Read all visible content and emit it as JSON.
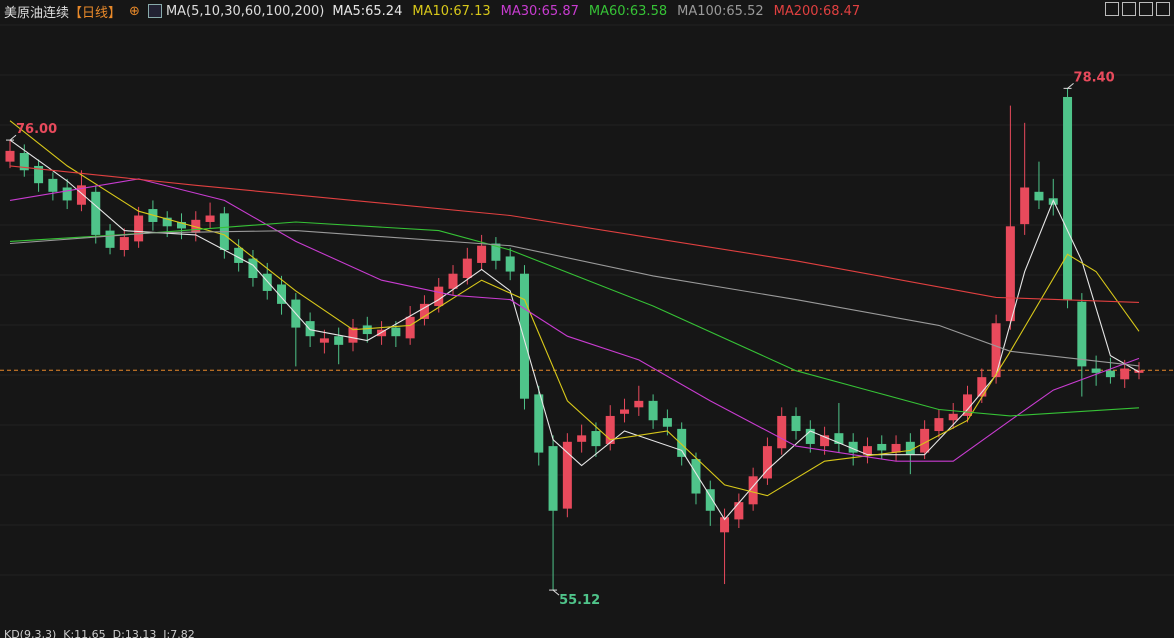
{
  "chart_data": {
    "type": "candlestick",
    "title": "美原油连续",
    "period": "【日线】",
    "indicator": "MA(5,10,30,60,100,200)",
    "ylim": [
      53.5,
      82.5
    ],
    "candles": {
      "up_color": "#e84a5c",
      "down_color": "#4fc48a",
      "open": [
        75.0,
        75.4,
        74.8,
        74.2,
        73.8,
        73.0,
        73.6,
        71.8,
        70.9,
        71.3,
        72.8,
        72.4,
        72.2,
        71.7,
        72.2,
        72.6,
        71.0,
        70.5,
        69.8,
        69.3,
        68.6,
        67.6,
        66.6,
        66.9,
        66.6,
        67.4,
        66.9,
        67.3,
        66.8,
        67.7,
        68.3,
        69.1,
        69.6,
        70.3,
        71.2,
        70.6,
        69.8,
        64.2,
        61.8,
        58.9,
        62.0,
        62.5,
        61.9,
        63.3,
        63.6,
        63.9,
        63.1,
        62.6,
        61.2,
        59.8,
        57.8,
        58.4,
        59.1,
        60.3,
        61.7,
        63.2,
        62.6,
        61.8,
        62.4,
        62.0,
        61.4,
        61.9,
        61.5,
        62.0,
        61.5,
        62.5,
        63.0,
        63.2,
        64.1,
        65.0,
        67.6,
        72.1,
        73.6,
        73.3,
        78.0,
        68.5,
        65.4,
        65.3,
        64.9,
        65.2
      ],
      "high": [
        76.0,
        75.8,
        75.1,
        74.5,
        74.2,
        74.6,
        73.9,
        72.1,
        71.9,
        72.9,
        73.2,
        72.7,
        72.6,
        72.7,
        73.1,
        72.9,
        71.4,
        70.9,
        70.3,
        69.7,
        68.9,
        68.0,
        67.2,
        67.3,
        67.7,
        67.8,
        67.6,
        67.6,
        68.3,
        68.8,
        69.6,
        70.2,
        71.0,
        71.6,
        71.5,
        71.0,
        70.2,
        64.6,
        62.3,
        62.4,
        62.8,
        62.9,
        63.7,
        64.0,
        64.6,
        64.2,
        63.5,
        62.9,
        61.5,
        60.2,
        58.9,
        59.6,
        60.8,
        62.2,
        63.6,
        63.6,
        63.0,
        62.7,
        63.8,
        62.4,
        62.2,
        62.3,
        62.3,
        62.4,
        63.0,
        63.5,
        63.8,
        64.6,
        65.4,
        67.9,
        77.6,
        76.8,
        75.0,
        74.2,
        78.4,
        68.9,
        66.0,
        65.9,
        65.8,
        65.7
      ],
      "low": [
        74.7,
        74.3,
        73.6,
        73.2,
        72.8,
        72.7,
        71.2,
        70.7,
        70.6,
        71.0,
        71.8,
        71.5,
        71.4,
        71.3,
        71.9,
        70.5,
        69.9,
        69.2,
        68.6,
        67.9,
        65.5,
        66.4,
        66.1,
        65.6,
        66.2,
        66.6,
        66.5,
        66.4,
        66.5,
        67.4,
        68.0,
        68.8,
        69.3,
        70.0,
        70.0,
        69.5,
        63.5,
        60.9,
        55.12,
        58.5,
        61.5,
        61.3,
        61.6,
        62.9,
        63.2,
        62.6,
        62.3,
        60.9,
        59.1,
        58.1,
        55.4,
        58.0,
        58.8,
        60.0,
        61.4,
        62.1,
        61.5,
        61.4,
        61.5,
        60.9,
        61.0,
        61.2,
        61.1,
        60.5,
        61.2,
        62.2,
        62.6,
        62.9,
        63.8,
        64.7,
        67.2,
        71.6,
        72.8,
        72.5,
        68.2,
        64.1,
        64.6,
        64.7,
        64.5,
        64.9
      ],
      "close": [
        75.5,
        74.6,
        74.0,
        73.6,
        73.2,
        73.9,
        71.6,
        71.0,
        71.5,
        72.5,
        72.2,
        72.0,
        71.9,
        72.3,
        72.5,
        70.9,
        70.3,
        69.6,
        69.0,
        68.4,
        67.3,
        66.9,
        66.8,
        66.5,
        67.3,
        67.0,
        67.2,
        66.9,
        67.8,
        68.4,
        69.2,
        69.8,
        70.5,
        71.1,
        70.4,
        69.9,
        64.0,
        61.5,
        58.8,
        62.0,
        62.3,
        61.8,
        63.2,
        63.5,
        63.9,
        63.0,
        62.7,
        61.3,
        59.6,
        58.8,
        58.5,
        59.2,
        60.4,
        61.8,
        63.2,
        62.5,
        61.9,
        62.3,
        61.9,
        61.5,
        61.8,
        61.6,
        61.9,
        61.4,
        62.6,
        63.1,
        63.3,
        64.2,
        65.0,
        67.5,
        72.0,
        73.8,
        73.2,
        73.0,
        68.6,
        65.5,
        65.2,
        65.0,
        65.4,
        65.32
      ]
    },
    "ma": [
      {
        "name": "MA5:65.24",
        "color": "#e6e6e6",
        "x": [
          0,
          4,
          8,
          13,
          17,
          21,
          25,
          30,
          33,
          35,
          38,
          40,
          43,
          47,
          50,
          53,
          56,
          60,
          64,
          67,
          69,
          71,
          73,
          75,
          77,
          79
        ],
        "values": [
          76.0,
          74.1,
          71.8,
          71.6,
          70.2,
          67.2,
          66.7,
          68.6,
          70.0,
          69.0,
          62.1,
          60.9,
          62.5,
          61.6,
          58.4,
          60.7,
          62.5,
          61.4,
          61.4,
          63.5,
          65.1,
          69.9,
          73.2,
          70.4,
          66.0,
          65.24
        ]
      },
      {
        "name": "MA10:67.13",
        "color": "#d8c81a",
        "x": [
          0,
          4,
          9,
          15,
          20,
          24,
          28,
          33,
          36,
          39,
          42,
          46,
          50,
          53,
          57,
          63,
          67,
          70,
          74,
          76,
          79
        ],
        "values": [
          76.9,
          74.8,
          72.7,
          71.6,
          69.0,
          67.2,
          67.4,
          69.5,
          68.6,
          63.9,
          62.1,
          62.5,
          60.0,
          59.5,
          61.1,
          61.6,
          63.0,
          66.2,
          70.7,
          69.9,
          67.13
        ]
      },
      {
        "name": "MA30:65.87",
        "color": "#c83cd0",
        "x": [
          0,
          9,
          15,
          20,
          26,
          31,
          35,
          39,
          44,
          49,
          55,
          62,
          66,
          70,
          73,
          79
        ],
        "values": [
          73.2,
          74.2,
          73.2,
          71.3,
          69.5,
          68.8,
          68.6,
          66.9,
          65.8,
          63.9,
          61.8,
          61.1,
          61.1,
          63.0,
          64.4,
          65.87
        ]
      },
      {
        "name": "MA60:63.58",
        "color": "#36c236",
        "x": [
          0,
          10,
          20,
          30,
          35,
          45,
          55,
          60,
          65,
          70,
          79
        ],
        "values": [
          71.3,
          71.7,
          72.2,
          71.8,
          70.9,
          68.3,
          65.3,
          64.4,
          63.5,
          63.2,
          63.58
        ]
      },
      {
        "name": "MA100:65.52",
        "color": "#9a9a9a",
        "x": [
          0,
          10,
          20,
          35,
          45,
          55,
          65,
          70,
          79
        ],
        "values": [
          71.2,
          71.7,
          71.8,
          71.1,
          69.7,
          68.6,
          67.4,
          66.2,
          65.52
        ]
      },
      {
        "name": "MA200:68.47",
        "color": "#e04040",
        "x": [
          0,
          13,
          35,
          55,
          69,
          79
        ],
        "values": [
          74.8,
          73.9,
          72.5,
          70.4,
          68.7,
          68.47
        ]
      }
    ],
    "annotations": [
      {
        "label": "76.00",
        "value": 76.0,
        "x": 0,
        "color": "#e84a5c"
      },
      {
        "label": "78.40",
        "value": 78.4,
        "x": 74,
        "color": "#e84a5c"
      },
      {
        "label": "55.12",
        "value": 55.12,
        "x": 38,
        "color": "#4fc48a"
      }
    ],
    "last_price": 65.32,
    "last_price_color": "#e8892a",
    "footer": "KD(9,3,3)  K:11.65  D:13.13  J:7.82"
  }
}
